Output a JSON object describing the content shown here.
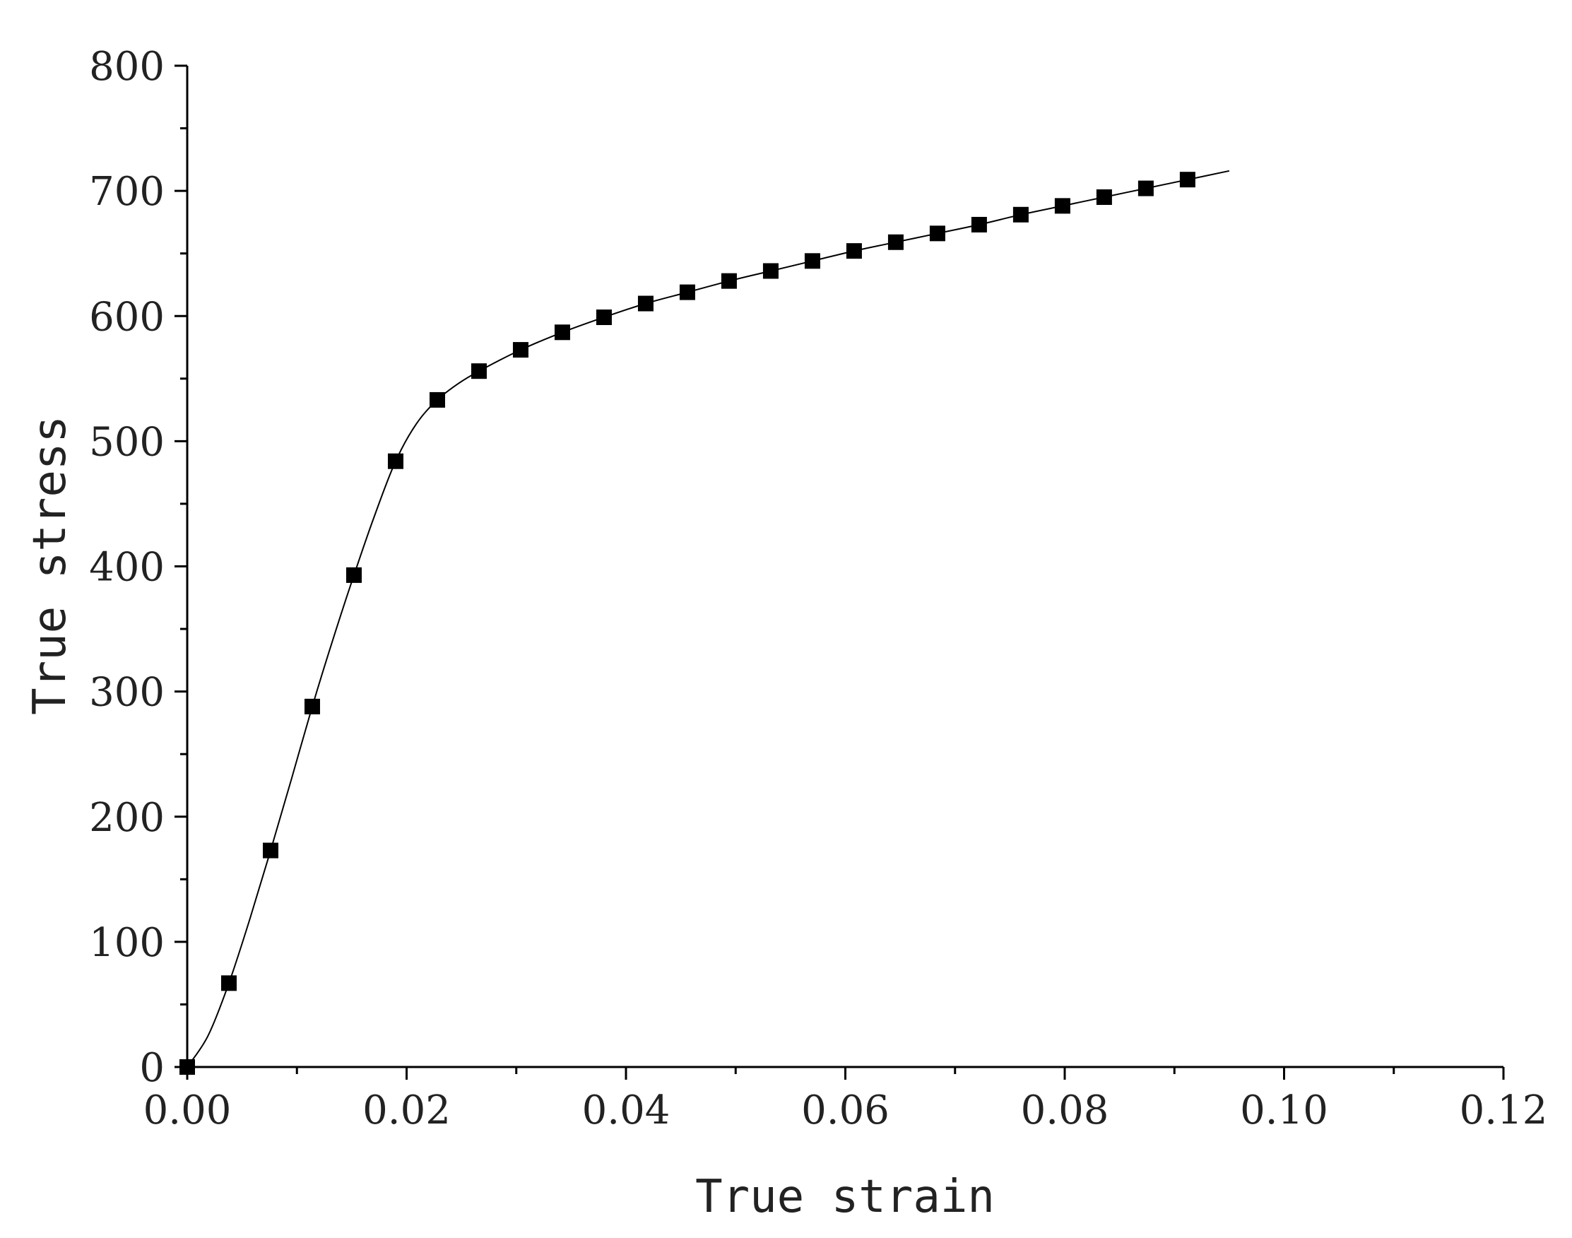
{
  "chart_data": {
    "type": "scatter",
    "xlabel": "True strain",
    "ylabel": "True stress",
    "xlim": [
      0,
      0.12
    ],
    "ylim": [
      0,
      800
    ],
    "x_ticks": [
      "0.00",
      "0.02",
      "0.04",
      "0.06",
      "0.08",
      "0.10",
      "0.12"
    ],
    "x_tick_values": [
      0,
      0.02,
      0.04,
      0.06,
      0.08,
      0.1,
      0.12
    ],
    "y_ticks": [
      "0",
      "100",
      "200",
      "300",
      "400",
      "500",
      "600",
      "700",
      "800"
    ],
    "y_tick_values": [
      0,
      100,
      200,
      300,
      400,
      500,
      600,
      700,
      800
    ],
    "grid": false,
    "legend": "none",
    "series": [
      {
        "marker": "square",
        "color": "#000000",
        "points": [
          [
            0.0,
            0
          ],
          [
            0.0038,
            67
          ],
          [
            0.0076,
            173
          ],
          [
            0.0114,
            288
          ],
          [
            0.0152,
            393
          ],
          [
            0.019,
            484
          ],
          [
            0.0228,
            533
          ],
          [
            0.0266,
            556
          ],
          [
            0.0304,
            573
          ],
          [
            0.0342,
            587
          ],
          [
            0.038,
            599
          ],
          [
            0.0418,
            610
          ],
          [
            0.0456,
            619
          ],
          [
            0.0494,
            628
          ],
          [
            0.0532,
            636
          ],
          [
            0.057,
            644
          ],
          [
            0.0608,
            652
          ],
          [
            0.0646,
            659
          ],
          [
            0.0684,
            666
          ],
          [
            0.0722,
            673
          ],
          [
            0.076,
            681
          ],
          [
            0.0798,
            688
          ],
          [
            0.0836,
            695
          ],
          [
            0.0874,
            702
          ],
          [
            0.0912,
            709
          ]
        ]
      }
    ],
    "fit_curve": {
      "color": "#000000",
      "points": [
        [
          0.0,
          0
        ],
        [
          0.0019,
          25
        ],
        [
          0.0038,
          67
        ],
        [
          0.0057,
          118
        ],
        [
          0.0076,
          173
        ],
        [
          0.0095,
          230
        ],
        [
          0.0114,
          288
        ],
        [
          0.0133,
          342
        ],
        [
          0.0152,
          393
        ],
        [
          0.0171,
          441
        ],
        [
          0.019,
          484
        ],
        [
          0.0209,
          514
        ],
        [
          0.0228,
          533
        ],
        [
          0.0247,
          546
        ],
        [
          0.0266,
          556
        ],
        [
          0.0304,
          573
        ],
        [
          0.0342,
          587
        ],
        [
          0.038,
          599
        ],
        [
          0.0418,
          610
        ],
        [
          0.0456,
          619
        ],
        [
          0.0494,
          628
        ],
        [
          0.0532,
          636
        ],
        [
          0.057,
          644
        ],
        [
          0.0608,
          652
        ],
        [
          0.0646,
          659
        ],
        [
          0.0684,
          666
        ],
        [
          0.0722,
          673
        ],
        [
          0.076,
          681
        ],
        [
          0.0798,
          688
        ],
        [
          0.0836,
          695
        ],
        [
          0.0874,
          702
        ],
        [
          0.0912,
          709
        ],
        [
          0.095,
          716
        ]
      ]
    }
  }
}
